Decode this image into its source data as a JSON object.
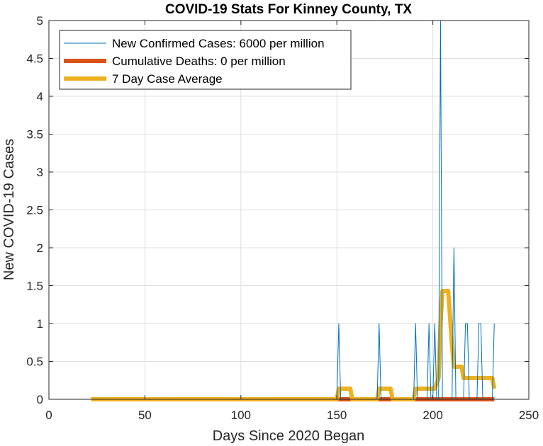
{
  "chart_data": {
    "type": "line",
    "title": "COVID-19 Stats For Kinney County, TX",
    "xlabel": "Days Since 2020 Began",
    "ylabel": "New COVID-19 Cases",
    "xlim": [
      0,
      250
    ],
    "ylim": [
      0,
      5
    ],
    "xticks": [
      0,
      50,
      100,
      150,
      200,
      250
    ],
    "yticks": [
      0,
      0.5,
      1,
      1.5,
      2,
      2.5,
      3,
      3.5,
      4,
      4.5,
      5
    ],
    "grid": true,
    "legend_position": "top-left",
    "series": [
      {
        "name": "New Confirmed Cases: 6000 per million",
        "color": "#0072bd",
        "points": [
          [
            22,
            0
          ],
          [
            150,
            0
          ],
          [
            151,
            1
          ],
          [
            152,
            0
          ],
          [
            171,
            0
          ],
          [
            172,
            1
          ],
          [
            173,
            0
          ],
          [
            190,
            0
          ],
          [
            191,
            1
          ],
          [
            192,
            0
          ],
          [
            197,
            0
          ],
          [
            198,
            1
          ],
          [
            199,
            0
          ],
          [
            200,
            0
          ],
          [
            201,
            1
          ],
          [
            202,
            0
          ],
          [
            203,
            0
          ],
          [
            204,
            5
          ],
          [
            205,
            0
          ],
          [
            210,
            0
          ],
          [
            211,
            2
          ],
          [
            212,
            0
          ],
          [
            216,
            0
          ],
          [
            217,
            1
          ],
          [
            218,
            1
          ],
          [
            219,
            0
          ],
          [
            223,
            0
          ],
          [
            224,
            1
          ],
          [
            225,
            1
          ],
          [
            226,
            0
          ],
          [
            231,
            0
          ],
          [
            232,
            1
          ]
        ]
      },
      {
        "name": "Cumulative Deaths: 0 per million",
        "color": "#d95319",
        "points": [
          [
            22,
            0
          ],
          [
            232,
            0
          ]
        ]
      },
      {
        "name": "7 Day Case Average",
        "color": "#edb120",
        "points": [
          [
            22,
            0
          ],
          [
            150,
            0
          ],
          [
            151,
            0.14
          ],
          [
            157,
            0.14
          ],
          [
            158,
            0
          ],
          [
            171,
            0
          ],
          [
            172,
            0.14
          ],
          [
            178,
            0.14
          ],
          [
            179,
            0
          ],
          [
            190,
            0
          ],
          [
            191,
            0.14
          ],
          [
            201,
            0.14
          ],
          [
            203,
            0.28
          ],
          [
            204,
            1.0
          ],
          [
            205,
            1.43
          ],
          [
            208,
            1.43
          ],
          [
            210,
            0.71
          ],
          [
            211,
            0.43
          ],
          [
            215,
            0.43
          ],
          [
            216,
            0.28
          ],
          [
            230,
            0.28
          ],
          [
            231,
            0.28
          ],
          [
            232,
            0.14
          ]
        ]
      }
    ]
  }
}
